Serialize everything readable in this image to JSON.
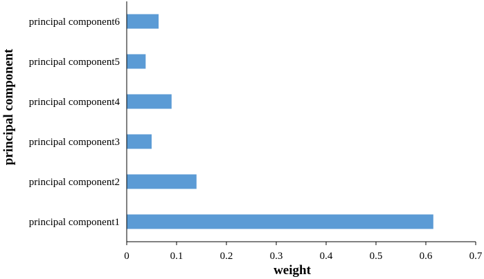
{
  "chart_data": {
    "type": "bar",
    "orientation": "horizontal",
    "title": "",
    "xlabel": "weight",
    "ylabel": "principal component",
    "categories": [
      "principal component1",
      "principal component2",
      "principal component3",
      "principal component4",
      "principal component5",
      "principal component6"
    ],
    "values": [
      0.615,
      0.14,
      0.05,
      0.09,
      0.038,
      0.064
    ],
    "xlim": [
      0,
      0.7
    ],
    "xticks": [
      "0",
      "0.1",
      "0.2",
      "0.3",
      "0.4",
      "0.5",
      "0.6",
      "0.7"
    ],
    "grid": false,
    "legend": "none",
    "colors": {
      "bar": "#5b9bd5",
      "axis": "#000000",
      "text": "#000000"
    }
  }
}
